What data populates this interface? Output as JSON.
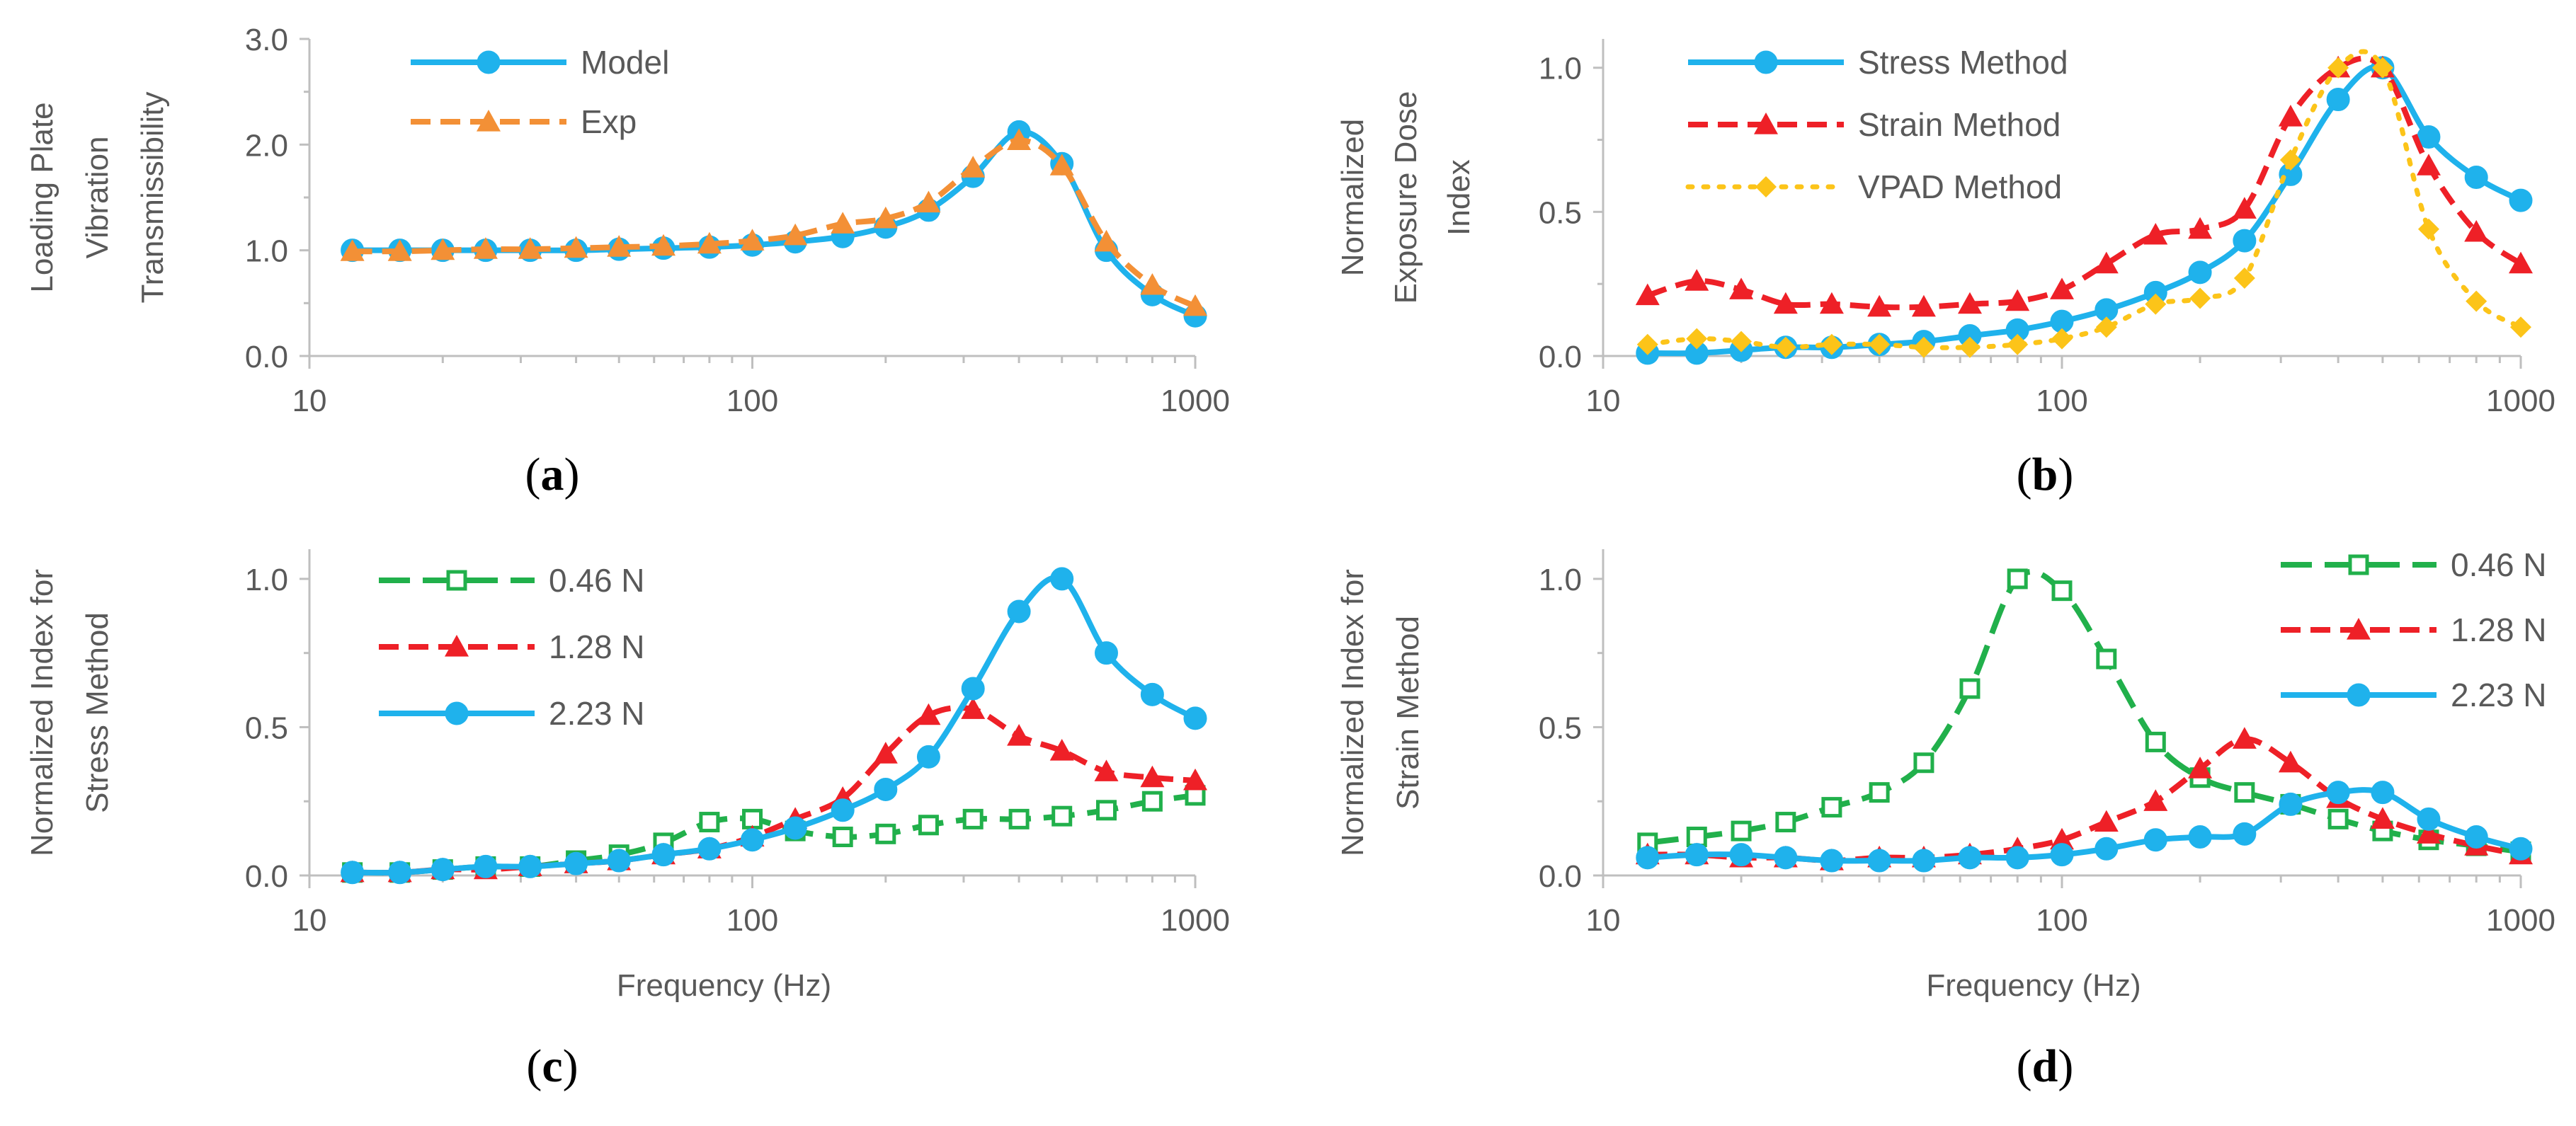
{
  "colors": {
    "blue": "#1fb2ec",
    "orange": "#f39036",
    "red": "#ee2027",
    "yellow": "#fcc419",
    "green": "#21b04b",
    "axis": "#bfbfbf",
    "text": "#595959"
  },
  "chart_data": [
    {
      "panel": "a",
      "panel_label": "a",
      "type": "line",
      "xscale": "log",
      "xlim": [
        10,
        1000
      ],
      "ylim": [
        0,
        3
      ],
      "xticks": [
        "10",
        "100",
        "1000"
      ],
      "yticks": [
        "0.0",
        "1.0",
        "2.0",
        "3.0"
      ],
      "ylabel_lines": [
        "Loading Plate",
        "Vibration",
        "Transmissibility"
      ],
      "xlabel": "",
      "legend_position": "top-left",
      "x": [
        12.5,
        16,
        20,
        25,
        31.5,
        40,
        50,
        63,
        80,
        100,
        125,
        160,
        200,
        250,
        315,
        400,
        500,
        630,
        800,
        1000
      ],
      "series": [
        {
          "name": "Model",
          "color_key": "blue",
          "marker": "circle",
          "dash": "solid",
          "values": [
            1.0,
            1.0,
            1.0,
            1.0,
            1.0,
            1.0,
            1.01,
            1.02,
            1.03,
            1.05,
            1.08,
            1.13,
            1.22,
            1.38,
            1.7,
            2.12,
            1.82,
            1.0,
            0.58,
            0.38
          ]
        },
        {
          "name": "Exp",
          "color_key": "orange",
          "marker": "triangle",
          "dash": "dashed",
          "values": [
            0.99,
            0.99,
            1.0,
            1.01,
            1.01,
            1.02,
            1.03,
            1.04,
            1.06,
            1.09,
            1.14,
            1.25,
            1.3,
            1.45,
            1.78,
            2.04,
            1.8,
            1.08,
            0.67,
            0.47
          ]
        }
      ]
    },
    {
      "panel": "b",
      "panel_label": "b",
      "type": "line",
      "xscale": "log",
      "xlim": [
        10,
        1000
      ],
      "ylim": [
        0,
        1.1
      ],
      "xticks": [
        "10",
        "100",
        "1000"
      ],
      "yticks": [
        "0.0",
        "0.5",
        "1.0"
      ],
      "ylabel_lines": [
        "Normalized",
        "Exposure Dose",
        "Index"
      ],
      "xlabel": "",
      "legend_position": "top-left",
      "x": [
        12.5,
        16,
        20,
        25,
        31.5,
        40,
        50,
        63,
        80,
        100,
        125,
        160,
        200,
        250,
        315,
        400,
        500,
        630,
        800,
        1000
      ],
      "series": [
        {
          "name": "Stress Method",
          "color_key": "blue",
          "marker": "circle",
          "dash": "solid",
          "values": [
            0.01,
            0.01,
            0.02,
            0.03,
            0.03,
            0.04,
            0.05,
            0.07,
            0.09,
            0.12,
            0.16,
            0.22,
            0.29,
            0.4,
            0.63,
            0.89,
            1.0,
            0.76,
            0.62,
            0.54
          ]
        },
        {
          "name": "Strain Method",
          "color_key": "red",
          "marker": "triangle",
          "dash": "dashed",
          "values": [
            0.21,
            0.26,
            0.23,
            0.18,
            0.18,
            0.17,
            0.17,
            0.18,
            0.19,
            0.23,
            0.32,
            0.42,
            0.44,
            0.51,
            0.83,
            1.0,
            1.0,
            0.66,
            0.43,
            0.32
          ]
        },
        {
          "name": "VPAD Method",
          "color_key": "yellow",
          "marker": "diamond",
          "dash": "dotted",
          "values": [
            0.04,
            0.06,
            0.05,
            0.03,
            0.04,
            0.04,
            0.03,
            0.03,
            0.04,
            0.06,
            0.1,
            0.18,
            0.2,
            0.27,
            0.68,
            1.0,
            1.0,
            0.44,
            0.19,
            0.1
          ]
        }
      ]
    },
    {
      "panel": "c",
      "panel_label": "c",
      "type": "line",
      "xscale": "log",
      "xlim": [
        10,
        1000
      ],
      "ylim": [
        0,
        1.1
      ],
      "xticks": [
        "10",
        "100",
        "1000"
      ],
      "yticks": [
        "0.0",
        "0.5",
        "1.0"
      ],
      "ylabel_lines": [
        "Normalized Index for",
        "Stress Method"
      ],
      "xlabel": "Frequency  (Hz)",
      "legend_position": "top-left",
      "x": [
        12.5,
        16,
        20,
        25,
        31.5,
        40,
        50,
        63,
        80,
        100,
        125,
        160,
        200,
        250,
        315,
        400,
        500,
        630,
        800,
        1000
      ],
      "series": [
        {
          "name": "0.46 N",
          "color_key": "green",
          "marker": "square-open",
          "dash": "longdash",
          "values": [
            0.01,
            0.01,
            0.02,
            0.03,
            0.03,
            0.05,
            0.07,
            0.11,
            0.18,
            0.19,
            0.15,
            0.13,
            0.14,
            0.17,
            0.19,
            0.19,
            0.2,
            0.22,
            0.25,
            0.27
          ]
        },
        {
          "name": "1.28 N",
          "color_key": "red",
          "marker": "triangle",
          "dash": "dashed",
          "values": [
            0.01,
            0.01,
            0.02,
            0.02,
            0.03,
            0.04,
            0.05,
            0.07,
            0.09,
            0.13,
            0.19,
            0.26,
            0.41,
            0.54,
            0.56,
            0.47,
            0.42,
            0.35,
            0.33,
            0.32
          ]
        },
        {
          "name": "2.23 N",
          "color_key": "blue",
          "marker": "circle",
          "dash": "solid",
          "values": [
            0.01,
            0.01,
            0.02,
            0.03,
            0.03,
            0.04,
            0.05,
            0.07,
            0.09,
            0.12,
            0.16,
            0.22,
            0.29,
            0.4,
            0.63,
            0.89,
            1.0,
            0.75,
            0.61,
            0.53
          ]
        }
      ]
    },
    {
      "panel": "d",
      "panel_label": "d",
      "type": "line",
      "xscale": "log",
      "xlim": [
        10,
        1000
      ],
      "ylim": [
        0,
        1.1
      ],
      "xticks": [
        "10",
        "100",
        "1000"
      ],
      "yticks": [
        "0.0",
        "0.5",
        "1.0"
      ],
      "ylabel_lines": [
        "Normalized Index for",
        "Strain  Method"
      ],
      "xlabel": "Frequency  (Hz)",
      "legend_position": "top-right",
      "x": [
        12.5,
        16,
        20,
        25,
        31.5,
        40,
        50,
        63,
        80,
        100,
        125,
        160,
        200,
        250,
        315,
        400,
        500,
        630,
        800,
        1000
      ],
      "series": [
        {
          "name": "0.46 N",
          "color_key": "green",
          "marker": "square-open",
          "dash": "longdash",
          "values": [
            0.11,
            0.13,
            0.15,
            0.18,
            0.23,
            0.28,
            0.38,
            0.63,
            1.0,
            0.96,
            0.73,
            0.45,
            0.33,
            0.28,
            0.24,
            0.19,
            0.15,
            0.12,
            0.1,
            0.08
          ]
        },
        {
          "name": "1.28 N",
          "color_key": "red",
          "marker": "triangle",
          "dash": "dashed",
          "values": [
            0.07,
            0.07,
            0.06,
            0.06,
            0.05,
            0.06,
            0.06,
            0.07,
            0.09,
            0.12,
            0.18,
            0.25,
            0.36,
            0.46,
            0.38,
            0.26,
            0.19,
            0.14,
            0.1,
            0.07
          ]
        },
        {
          "name": "2.23 N",
          "color_key": "blue",
          "marker": "circle",
          "dash": "solid",
          "values": [
            0.06,
            0.07,
            0.07,
            0.06,
            0.05,
            0.05,
            0.05,
            0.06,
            0.06,
            0.07,
            0.09,
            0.12,
            0.13,
            0.14,
            0.24,
            0.28,
            0.28,
            0.19,
            0.13,
            0.09
          ]
        }
      ]
    }
  ]
}
